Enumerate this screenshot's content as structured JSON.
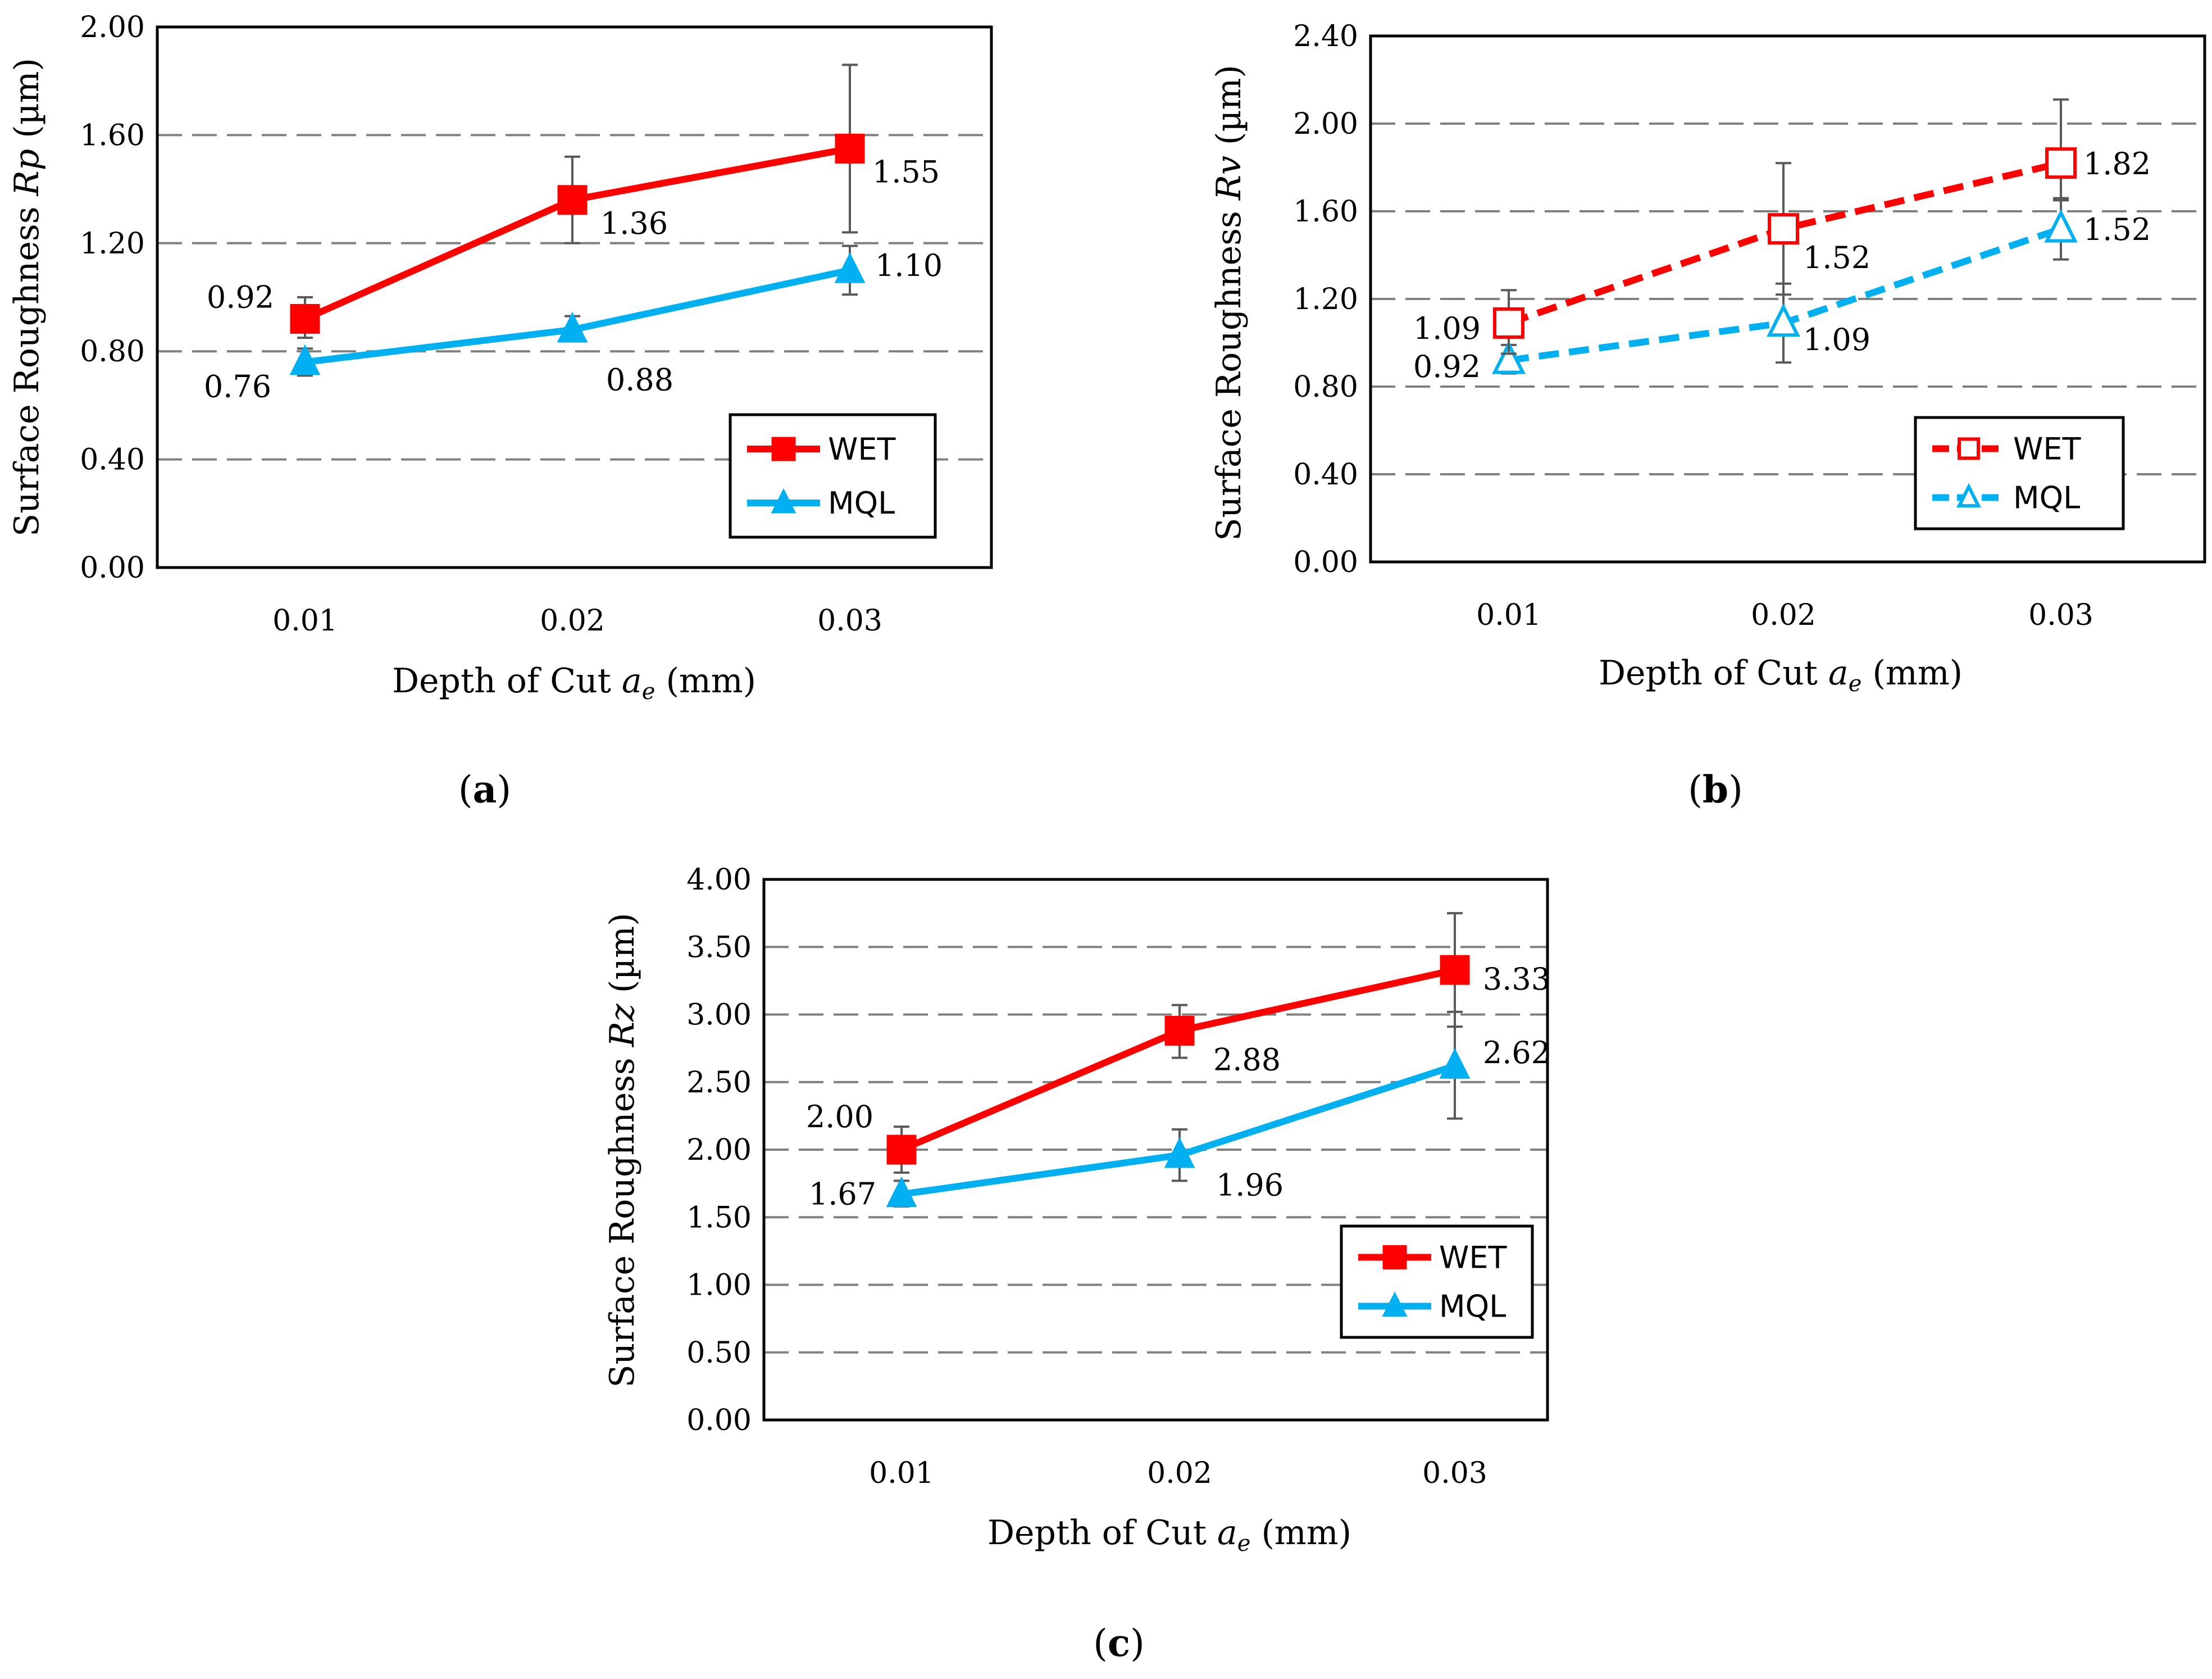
{
  "chart_data": [
    {
      "type": "line",
      "panel": "a",
      "ylabel_prefix": "Surface Roughness ",
      "ylabel_var": "Rp",
      "ylabel_unit": " (µm)",
      "xlabel_prefix": "Depth of Cut ",
      "xlabel_var": "a",
      "xlabel_sub": "e",
      "xlabel_unit": " (mm)",
      "ylim": [
        0,
        2.0
      ],
      "yticks": [
        "0.00",
        "0.40",
        "0.80",
        "1.20",
        "1.60",
        "2.00"
      ],
      "categories": [
        "0.01",
        "0.02",
        "0.03"
      ],
      "series": [
        {
          "name": "WET",
          "color": "#ff0000",
          "marker": "square",
          "filled": true,
          "dashed": false,
          "values": [
            0.92,
            1.36,
            1.55
          ],
          "labels": [
            "0.92",
            "1.36",
            "1.55"
          ],
          "err_low": [
            0.85,
            1.2,
            1.24
          ],
          "err_high": [
            1.0,
            1.52,
            1.86
          ]
        },
        {
          "name": "MQL",
          "color": "#00b0f0",
          "marker": "triangle",
          "filled": true,
          "dashed": false,
          "values": [
            0.76,
            0.88,
            1.1
          ],
          "labels": [
            "0.76",
            "0.88",
            "1.10"
          ],
          "err_low": [
            0.71,
            0.84,
            1.01
          ],
          "err_high": [
            0.81,
            0.93,
            1.19
          ]
        }
      ],
      "legend": "bottom-right",
      "caption_open": "(",
      "caption_letter": "a",
      "caption_close": ")"
    },
    {
      "type": "line",
      "panel": "b",
      "ylabel_prefix": "Surface Roughness ",
      "ylabel_var": "Rv",
      "ylabel_unit": " (µm)",
      "xlabel_prefix": "Depth of Cut ",
      "xlabel_var": "a",
      "xlabel_sub": "e",
      "xlabel_unit": " (mm)",
      "ylim": [
        0,
        2.4
      ],
      "yticks": [
        "0.00",
        "0.40",
        "0.80",
        "1.20",
        "1.60",
        "2.00",
        "2.40"
      ],
      "categories": [
        "0.01",
        "0.02",
        "0.03"
      ],
      "series": [
        {
          "name": "WET",
          "color": "#ff0000",
          "marker": "square",
          "filled": false,
          "dashed": true,
          "values": [
            1.09,
            1.52,
            1.82
          ],
          "labels": [
            "1.09",
            "1.52",
            "1.82"
          ],
          "err_low": [
            0.95,
            1.22,
            1.65
          ],
          "err_high": [
            1.24,
            1.82,
            2.11
          ]
        },
        {
          "name": "MQL",
          "color": "#00b0f0",
          "marker": "triangle",
          "filled": false,
          "dashed": true,
          "values": [
            0.92,
            1.09,
            1.52
          ],
          "labels": [
            "0.92",
            "1.09",
            "1.52"
          ],
          "err_low": [
            0.86,
            0.91,
            1.38
          ],
          "err_high": [
            0.99,
            1.27,
            1.66
          ]
        }
      ],
      "legend": "bottom-right",
      "caption_open": "(",
      "caption_letter": "b",
      "caption_close": ")"
    },
    {
      "type": "line",
      "panel": "c",
      "ylabel_prefix": "Surface Roughness ",
      "ylabel_var": "Rz",
      "ylabel_unit": " (µm)",
      "xlabel_prefix": "Depth of Cut ",
      "xlabel_var": "a",
      "xlabel_sub": "e",
      "xlabel_unit": " (mm)",
      "ylim": [
        0,
        4.0
      ],
      "yticks": [
        "0.00",
        "0.50",
        "1.00",
        "1.50",
        "2.00",
        "2.50",
        "3.00",
        "3.50",
        "4.00"
      ],
      "categories": [
        "0.01",
        "0.02",
        "0.03"
      ],
      "series": [
        {
          "name": "WET",
          "color": "#ff0000",
          "marker": "square",
          "filled": true,
          "dashed": false,
          "values": [
            2.0,
            2.88,
            3.33
          ],
          "labels": [
            "2.00",
            "2.88",
            "3.33"
          ],
          "err_low": [
            1.83,
            2.68,
            2.91
          ],
          "err_high": [
            2.17,
            3.07,
            3.75
          ]
        },
        {
          "name": "MQL",
          "color": "#00b0f0",
          "marker": "triangle",
          "filled": true,
          "dashed": false,
          "values": [
            1.67,
            1.96,
            2.62
          ],
          "labels": [
            "1.67",
            "1.96",
            "2.62"
          ],
          "err_low": [
            1.58,
            1.77,
            2.23
          ],
          "err_high": [
            1.77,
            2.15,
            3.02
          ]
        }
      ],
      "legend": "bottom-right",
      "caption_open": "(",
      "caption_letter": "c",
      "caption_close": ")"
    }
  ]
}
